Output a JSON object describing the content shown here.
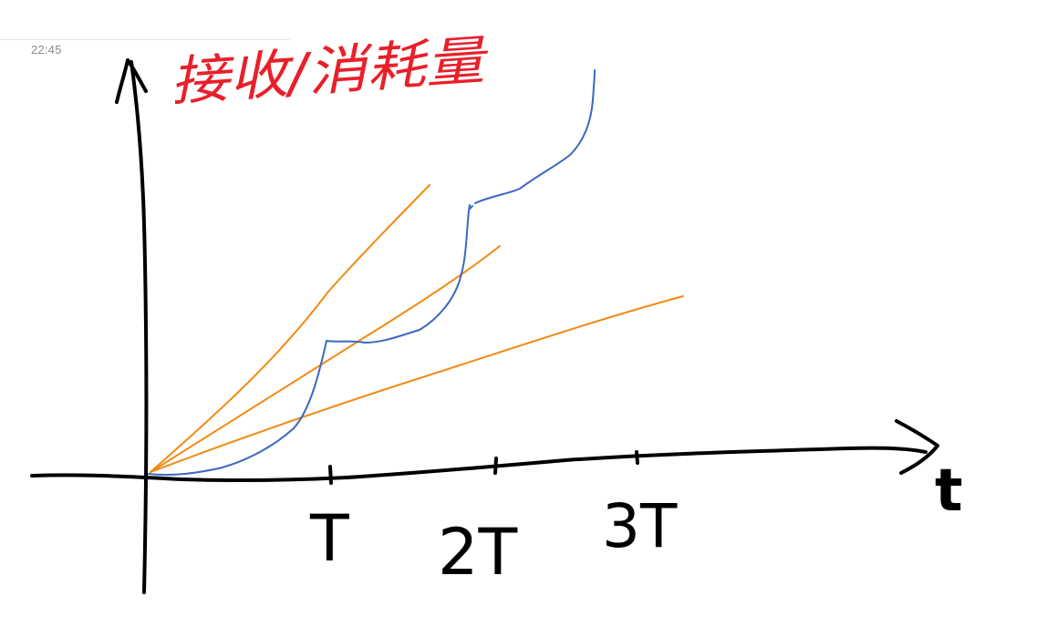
{
  "header": {
    "timestamp": "22:45"
  },
  "diagram": {
    "y_axis_label": "接收/消耗量",
    "x_axis_label": "t",
    "ticks": [
      "T",
      "2T",
      "3T"
    ],
    "colors": {
      "axes": "#000000",
      "title": "#e8202a",
      "linear_lines": "#f28a14",
      "receive_curve": "#3b68c0"
    }
  }
}
